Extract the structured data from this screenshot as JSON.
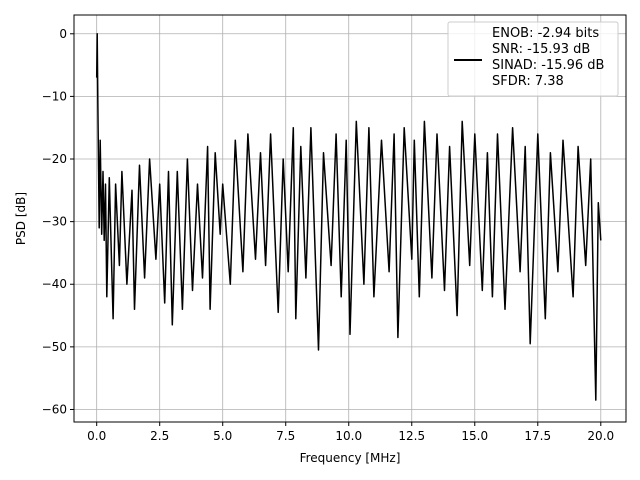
{
  "chart_data": {
    "type": "line",
    "title": "",
    "xlabel": "Frequency [MHz]",
    "ylabel": "PSD [dB]",
    "xlim": [
      -0.9,
      21.0
    ],
    "ylim": [
      -62,
      3
    ],
    "x_ticks": [
      0.0,
      2.5,
      5.0,
      7.5,
      10.0,
      12.5,
      15.0,
      17.5,
      20.0
    ],
    "x_tick_labels": [
      "0.0",
      "2.5",
      "5.0",
      "7.5",
      "10.0",
      "12.5",
      "15.0",
      "17.5",
      "20.0"
    ],
    "y_ticks": [
      0,
      -10,
      -20,
      -30,
      -40,
      -50,
      -60
    ],
    "y_tick_labels": [
      "0",
      "−10",
      "−20",
      "−30",
      "−40",
      "−50",
      "−60"
    ],
    "grid": true,
    "legend_position": "top-right",
    "legend_lines": [
      "ENOB: -2.94 bits",
      "SNR: -15.93 dB",
      "SINAD: -15.96 dB",
      "SFDR: 7.38"
    ],
    "series": [
      {
        "color": "#000000",
        "points": [
          [
            0.0,
            -7
          ],
          [
            0.02,
            0
          ],
          [
            0.05,
            -12
          ],
          [
            0.1,
            -31
          ],
          [
            0.14,
            -17
          ],
          [
            0.2,
            -32
          ],
          [
            0.25,
            -22
          ],
          [
            0.3,
            -33
          ],
          [
            0.35,
            -24
          ],
          [
            0.4,
            -42
          ],
          [
            0.5,
            -23
          ],
          [
            0.6,
            -38
          ],
          [
            0.65,
            -45.5
          ],
          [
            0.75,
            -24
          ],
          [
            0.9,
            -37
          ],
          [
            1.0,
            -22
          ],
          [
            1.2,
            -40
          ],
          [
            1.4,
            -25
          ],
          [
            1.5,
            -44
          ],
          [
            1.7,
            -21
          ],
          [
            1.9,
            -39
          ],
          [
            2.1,
            -20
          ],
          [
            2.35,
            -36
          ],
          [
            2.5,
            -24
          ],
          [
            2.7,
            -43
          ],
          [
            2.85,
            -22
          ],
          [
            3.0,
            -46.5
          ],
          [
            3.2,
            -22
          ],
          [
            3.4,
            -44
          ],
          [
            3.6,
            -20
          ],
          [
            3.8,
            -41
          ],
          [
            4.0,
            -24
          ],
          [
            4.2,
            -39
          ],
          [
            4.4,
            -18
          ],
          [
            4.5,
            -44
          ],
          [
            4.7,
            -19
          ],
          [
            4.9,
            -32
          ],
          [
            5.0,
            -24
          ],
          [
            5.3,
            -40
          ],
          [
            5.5,
            -17
          ],
          [
            5.8,
            -38
          ],
          [
            6.0,
            -16
          ],
          [
            6.3,
            -36
          ],
          [
            6.5,
            -19
          ],
          [
            6.7,
            -37
          ],
          [
            6.9,
            -16
          ],
          [
            7.2,
            -44.5
          ],
          [
            7.4,
            -20
          ],
          [
            7.6,
            -38
          ],
          [
            7.8,
            -15
          ],
          [
            7.9,
            -45.5
          ],
          [
            8.1,
            -18
          ],
          [
            8.3,
            -39
          ],
          [
            8.5,
            -15
          ],
          [
            8.8,
            -50.5
          ],
          [
            9.0,
            -19
          ],
          [
            9.3,
            -37
          ],
          [
            9.5,
            -16
          ],
          [
            9.7,
            -42
          ],
          [
            9.9,
            -17
          ],
          [
            10.05,
            -48
          ],
          [
            10.3,
            -14
          ],
          [
            10.6,
            -40
          ],
          [
            10.8,
            -15
          ],
          [
            11.0,
            -42
          ],
          [
            11.3,
            -17
          ],
          [
            11.6,
            -38
          ],
          [
            11.8,
            -16
          ],
          [
            11.95,
            -48.5
          ],
          [
            12.2,
            -15
          ],
          [
            12.5,
            -36
          ],
          [
            12.6,
            -17
          ],
          [
            12.8,
            -42
          ],
          [
            13.0,
            -14
          ],
          [
            13.3,
            -39
          ],
          [
            13.5,
            -16
          ],
          [
            13.8,
            -41
          ],
          [
            14.0,
            -18
          ],
          [
            14.3,
            -45
          ],
          [
            14.5,
            -14
          ],
          [
            14.8,
            -37
          ],
          [
            15.0,
            -16
          ],
          [
            15.3,
            -41
          ],
          [
            15.5,
            -19
          ],
          [
            15.7,
            -42
          ],
          [
            15.9,
            -16
          ],
          [
            16.2,
            -44
          ],
          [
            16.5,
            -15
          ],
          [
            16.8,
            -38
          ],
          [
            17.0,
            -18
          ],
          [
            17.2,
            -49.5
          ],
          [
            17.5,
            -16
          ],
          [
            17.8,
            -45.5
          ],
          [
            18.0,
            -19
          ],
          [
            18.3,
            -38
          ],
          [
            18.5,
            -17
          ],
          [
            18.9,
            -42
          ],
          [
            19.1,
            -18
          ],
          [
            19.4,
            -37
          ],
          [
            19.6,
            -20
          ],
          [
            19.8,
            -58.5
          ],
          [
            19.9,
            -27
          ],
          [
            20.0,
            -33
          ]
        ]
      }
    ]
  }
}
